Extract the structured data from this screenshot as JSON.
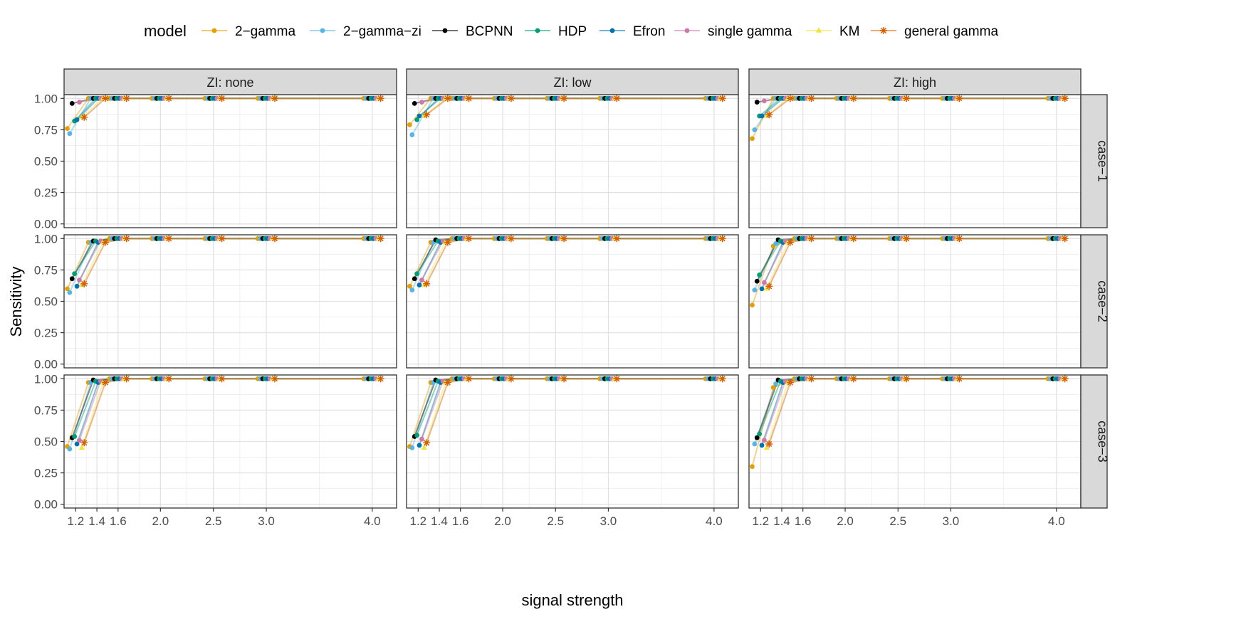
{
  "chart_data": {
    "type": "line",
    "facet_layout": "grid",
    "legend_title": "model",
    "legend_position": "top",
    "xlabel": "signal strength",
    "ylabel": "Sensitivity",
    "x_ticks": [
      1.2,
      1.4,
      1.6,
      2.0,
      2.5,
      3.0,
      4.0
    ],
    "x_tick_labels": [
      "1.2",
      "1.4",
      "1.6",
      "2.0",
      "2.5",
      "3.0",
      "4.0"
    ],
    "y_ticks": [
      0,
      0.25,
      0.5,
      0.75,
      1.0
    ],
    "y_tick_labels": [
      "0.00",
      "0.25",
      "0.50",
      "0.75",
      "1.00"
    ],
    "ylim": [
      -0.03,
      1.03
    ],
    "x_categories": [
      1.2,
      1.4,
      1.6,
      2.0,
      2.5,
      3.0,
      4.0
    ],
    "dodge_width": 0.16,
    "column_facets": [
      "ZI: none",
      "ZI: low",
      "ZI: high"
    ],
    "row_facets": [
      "case−1",
      "case−2",
      "case−3"
    ],
    "series": [
      {
        "name": "2−gamma",
        "color": "#E69F00",
        "shape": "circle"
      },
      {
        "name": "2−gamma−zi",
        "color": "#56B4E9",
        "shape": "circle"
      },
      {
        "name": "BCPNN",
        "color": "#000000",
        "shape": "circle"
      },
      {
        "name": "HDP",
        "color": "#009E73",
        "shape": "circle"
      },
      {
        "name": "Efron",
        "color": "#0072B2",
        "shape": "circle"
      },
      {
        "name": "single gamma",
        "color": "#CC79A7",
        "shape": "circle"
      },
      {
        "name": "KM",
        "color": "#F0E442",
        "shape": "triangle"
      },
      {
        "name": "general gamma",
        "color": "#D55E00",
        "shape": "asterisk"
      }
    ],
    "panels": [
      {
        "row": 0,
        "col": 0,
        "values": [
          [
            0.76,
            1,
            1,
            1,
            1,
            1,
            1
          ],
          [
            0.72,
            1,
            1,
            1,
            1,
            1,
            1
          ],
          [
            0.96,
            1,
            1,
            1,
            1,
            1,
            1
          ],
          [
            0.82,
            1,
            1,
            1,
            1,
            1,
            1
          ],
          [
            0.83,
            1,
            1,
            1,
            1,
            1,
            1
          ],
          [
            0.97,
            1,
            1,
            1,
            1,
            1,
            1
          ],
          [
            0.85,
            1,
            1,
            1,
            1,
            1,
            1
          ],
          [
            0.85,
            1,
            1,
            1,
            1,
            1,
            1
          ]
        ]
      },
      {
        "row": 0,
        "col": 1,
        "values": [
          [
            0.79,
            1,
            1,
            1,
            1,
            1,
            1
          ],
          [
            0.71,
            1,
            1,
            1,
            1,
            1,
            1
          ],
          [
            0.96,
            1,
            1,
            1,
            1,
            1,
            1
          ],
          [
            0.83,
            1,
            1,
            1,
            1,
            1,
            1
          ],
          [
            0.86,
            1,
            1,
            1,
            1,
            1,
            1
          ],
          [
            0.97,
            1,
            1,
            1,
            1,
            1,
            1
          ],
          [
            0.86,
            1,
            1,
            1,
            1,
            1,
            1
          ],
          [
            0.87,
            1,
            1,
            1,
            1,
            1,
            1
          ]
        ]
      },
      {
        "row": 0,
        "col": 2,
        "values": [
          [
            0.68,
            1,
            1,
            1,
            1,
            1,
            1
          ],
          [
            0.75,
            1,
            1,
            1,
            1,
            1,
            1
          ],
          [
            0.97,
            1,
            1,
            1,
            1,
            1,
            1
          ],
          [
            0.86,
            1,
            1,
            1,
            1,
            1,
            1
          ],
          [
            0.86,
            1,
            1,
            1,
            1,
            1,
            1
          ],
          [
            0.98,
            1,
            1,
            1,
            1,
            1,
            1
          ],
          [
            0.86,
            1,
            1,
            1,
            1,
            1,
            1
          ],
          [
            0.87,
            1,
            1,
            1,
            1,
            1,
            1
          ]
        ]
      },
      {
        "row": 1,
        "col": 0,
        "values": [
          [
            0.6,
            0.97,
            1,
            1,
            1,
            1,
            1
          ],
          [
            0.57,
            0.97,
            1,
            1,
            1,
            1,
            1
          ],
          [
            0.68,
            0.98,
            1,
            1,
            1,
            1,
            1
          ],
          [
            0.72,
            0.98,
            1,
            1,
            1,
            1,
            1
          ],
          [
            0.62,
            0.97,
            1,
            1,
            1,
            1,
            1
          ],
          [
            0.67,
            0.98,
            1,
            1,
            1,
            1,
            1
          ],
          [
            0.63,
            0.97,
            1,
            1,
            1,
            1,
            1
          ],
          [
            0.64,
            0.97,
            1,
            1,
            1,
            1,
            1
          ]
        ]
      },
      {
        "row": 1,
        "col": 1,
        "values": [
          [
            0.62,
            0.97,
            1,
            1,
            1,
            1,
            1
          ],
          [
            0.59,
            0.97,
            1,
            1,
            1,
            1,
            1
          ],
          [
            0.68,
            0.99,
            1,
            1,
            1,
            1,
            1
          ],
          [
            0.72,
            0.98,
            1,
            1,
            1,
            1,
            1
          ],
          [
            0.63,
            0.97,
            1,
            1,
            1,
            1,
            1
          ],
          [
            0.67,
            0.98,
            1,
            1,
            1,
            1,
            1
          ],
          [
            0.63,
            0.97,
            1,
            1,
            1,
            1,
            1
          ],
          [
            0.64,
            0.97,
            1,
            1,
            1,
            1,
            1
          ]
        ]
      },
      {
        "row": 1,
        "col": 2,
        "values": [
          [
            0.47,
            0.94,
            1,
            1,
            1,
            1,
            1
          ],
          [
            0.59,
            0.96,
            1,
            1,
            1,
            1,
            1
          ],
          [
            0.66,
            0.99,
            1,
            1,
            1,
            1,
            1
          ],
          [
            0.71,
            0.98,
            1,
            1,
            1,
            1,
            1
          ],
          [
            0.6,
            0.97,
            1,
            1,
            1,
            1,
            1
          ],
          [
            0.65,
            0.98,
            1,
            1,
            1,
            1,
            1
          ],
          [
            0.6,
            0.97,
            1,
            1,
            1,
            1,
            1
          ],
          [
            0.62,
            0.97,
            1,
            1,
            1,
            1,
            1
          ]
        ]
      },
      {
        "row": 2,
        "col": 0,
        "values": [
          [
            0.46,
            0.97,
            1,
            1,
            1,
            1,
            1
          ],
          [
            0.44,
            0.97,
            1,
            1,
            1,
            1,
            1
          ],
          [
            0.53,
            0.99,
            1,
            1,
            1,
            1,
            1
          ],
          [
            0.54,
            0.98,
            1,
            1,
            1,
            1,
            1
          ],
          [
            0.48,
            0.97,
            1,
            1,
            1,
            1,
            1
          ],
          [
            0.51,
            0.98,
            1,
            1,
            1,
            1,
            1
          ],
          [
            0.45,
            0.97,
            1,
            1,
            1,
            1,
            1
          ],
          [
            0.49,
            0.97,
            1,
            1,
            1,
            1,
            1
          ]
        ]
      },
      {
        "row": 2,
        "col": 1,
        "values": [
          [
            0.46,
            0.97,
            1,
            1,
            1,
            1,
            1
          ],
          [
            0.45,
            0.97,
            1,
            1,
            1,
            1,
            1
          ],
          [
            0.54,
            0.99,
            1,
            1,
            1,
            1,
            1
          ],
          [
            0.55,
            0.98,
            1,
            1,
            1,
            1,
            1
          ],
          [
            0.47,
            0.97,
            1,
            1,
            1,
            1,
            1
          ],
          [
            0.52,
            0.98,
            1,
            1,
            1,
            1,
            1
          ],
          [
            0.45,
            0.97,
            1,
            1,
            1,
            1,
            1
          ],
          [
            0.49,
            0.97,
            1,
            1,
            1,
            1,
            1
          ]
        ]
      },
      {
        "row": 2,
        "col": 2,
        "values": [
          [
            0.3,
            0.93,
            1,
            1,
            1,
            1,
            1
          ],
          [
            0.48,
            0.96,
            1,
            1,
            1,
            1,
            1
          ],
          [
            0.53,
            0.99,
            1,
            1,
            1,
            1,
            1
          ],
          [
            0.56,
            0.98,
            1,
            1,
            1,
            1,
            1
          ],
          [
            0.47,
            0.97,
            1,
            1,
            1,
            1,
            1
          ],
          [
            0.51,
            0.98,
            1,
            1,
            1,
            1,
            1
          ],
          [
            0.45,
            0.97,
            1,
            1,
            1,
            1,
            1
          ],
          [
            0.48,
            0.97,
            1,
            1,
            1,
            1,
            1
          ]
        ]
      }
    ]
  }
}
